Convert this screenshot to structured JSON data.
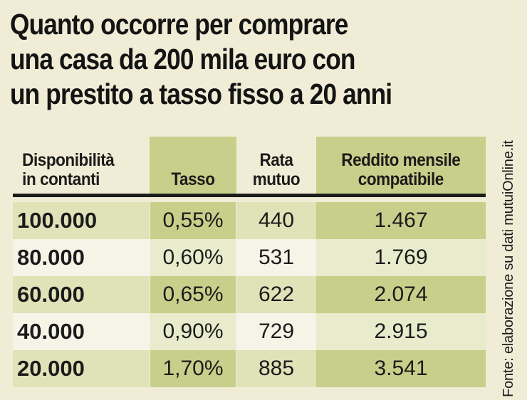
{
  "title": {
    "line1": "Quanto occorre per comprare",
    "line2": "una casa da 200 mila euro con",
    "line3": "un prestito a tasso fisso a 20 anni"
  },
  "headers": {
    "col1_line1": "Disponibilità",
    "col1_line2": "in contanti",
    "col2": "Tasso",
    "col3_line1": "Rata",
    "col3_line2": "mutuo",
    "col4_line1": "Reddito mensile",
    "col4_line2": "compatibile"
  },
  "rows": [
    {
      "disponibilita": "100.000",
      "tasso": "0,55%",
      "rata": "440",
      "reddito": "1.467"
    },
    {
      "disponibilita": "80.000",
      "tasso": "0,60%",
      "rata": "531",
      "reddito": "1.769"
    },
    {
      "disponibilita": "60.000",
      "tasso": "0,65%",
      "rata": "622",
      "reddito": "2.074"
    },
    {
      "disponibilita": "40.000",
      "tasso": "0,90%",
      "rata": "729",
      "reddito": "2.915"
    },
    {
      "disponibilita": "20.000",
      "tasso": "1,70%",
      "rata": "885",
      "reddito": "3.541"
    }
  ],
  "source": "Fonte: elaborazione su dati mutuiOnline.it",
  "colors": {
    "background": "#f1ecd5",
    "accent_dark": "#c8cf8a",
    "accent_light": "#dfe3b7",
    "row_light": "#f6f4e7"
  },
  "chart_data": {
    "type": "table",
    "title": "Quanto occorre per comprare una casa da 200 mila euro con un prestito a tasso fisso a 20 anni",
    "columns": [
      "Disponibilità in contanti",
      "Tasso",
      "Rata mutuo",
      "Reddito mensile compatibile"
    ],
    "rows": [
      [
        "100.000",
        "0,55%",
        "440",
        "1.467"
      ],
      [
        "80.000",
        "0,60%",
        "531",
        "1.769"
      ],
      [
        "60.000",
        "0,65%",
        "622",
        "2.074"
      ],
      [
        "40.000",
        "0,90%",
        "729",
        "2.915"
      ],
      [
        "20.000",
        "1,70%",
        "885",
        "3.541"
      ]
    ]
  }
}
